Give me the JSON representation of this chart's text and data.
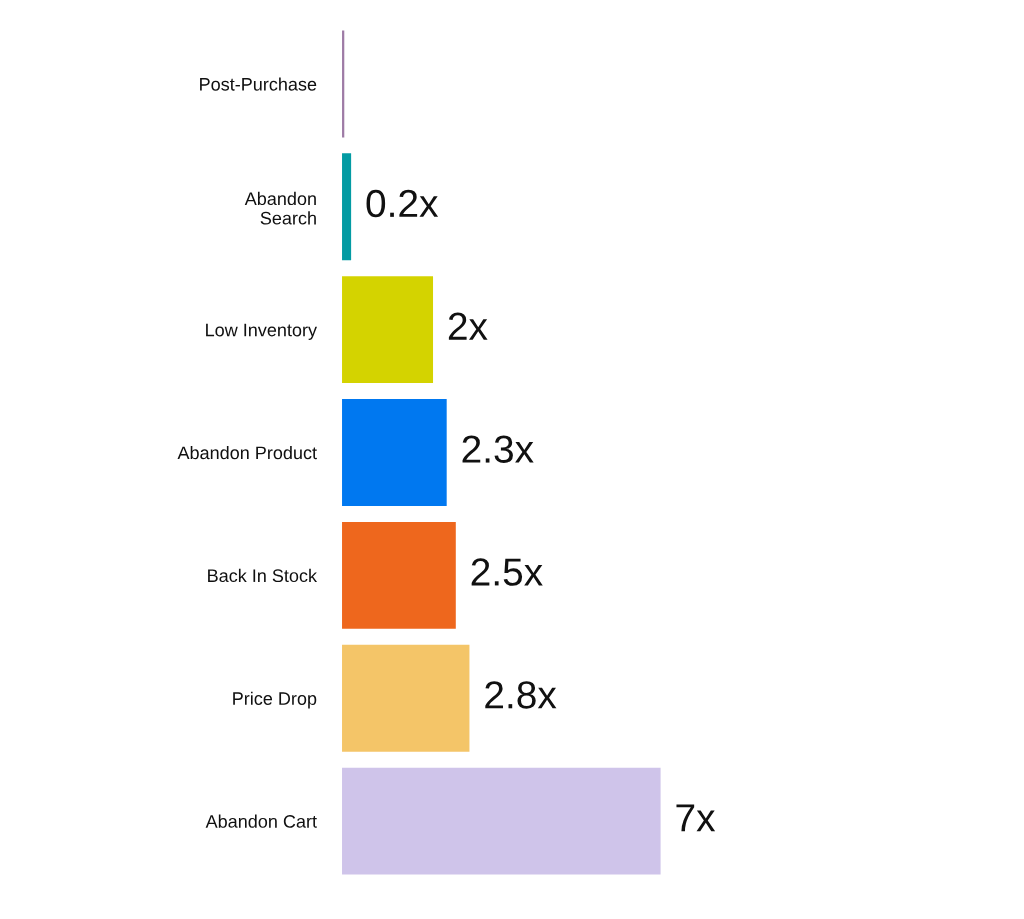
{
  "chart_data": {
    "type": "bar",
    "orientation": "horizontal",
    "categories": [
      "Post-Purchase",
      "Abandon\nSearch",
      "Low Inventory",
      "Abandon Product",
      "Back In Stock",
      "Price Drop",
      "Abandon Cart"
    ],
    "values": [
      0.05,
      0.2,
      2,
      2.3,
      2.5,
      2.8,
      7
    ],
    "colors": [
      "#9e7ba6",
      "#039ba3",
      "#d4d300",
      "#0078f0",
      "#ee671d",
      "#f4c568",
      "#cfc4ea"
    ],
    "value_labels": [
      null,
      "0.2x",
      "2x",
      "2.3x",
      "2.5x",
      "2.8x",
      "7x"
    ],
    "tick_labels": "y"
  }
}
